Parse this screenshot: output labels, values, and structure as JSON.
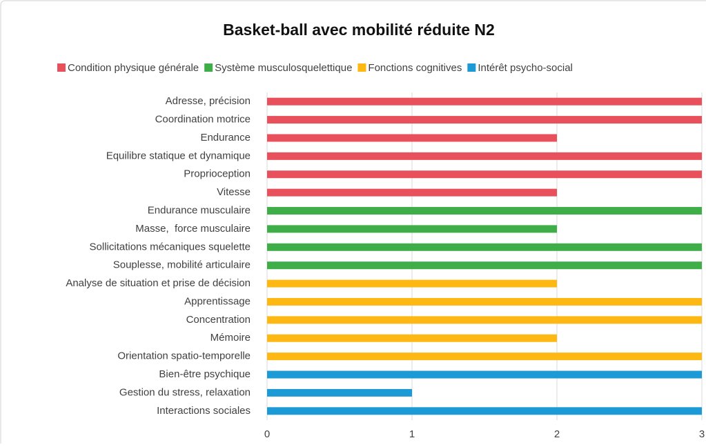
{
  "chart_data": {
    "type": "bar",
    "orientation": "horizontal",
    "title": "Basket-ball avec mobilité réduite N2",
    "categories": [
      "Adresse, précision",
      "Coordination motrice",
      "Endurance",
      "Equilibre statique et dynamique",
      "Proprioception",
      "Vitesse",
      "Endurance musculaire",
      "Masse,  force musculaire",
      "Sollicitations mécaniques squelette",
      "Souplesse, mobilité articulaire",
      "Analyse de situation et prise de décision",
      "Apprentissage",
      "Concentration",
      "Mémoire",
      "Orientation spatio-temporelle",
      "Bien-être psychique",
      "Gestion du stress, relaxation",
      "Interactions sociales"
    ],
    "series": [
      {
        "name": "Condition physique générale",
        "color": "#e8505b",
        "values": [
          3,
          3,
          2,
          3,
          3,
          2,
          null,
          null,
          null,
          null,
          null,
          null,
          null,
          null,
          null,
          null,
          null,
          null
        ]
      },
      {
        "name": "Système musculosquelettique",
        "color": "#3fae49",
        "values": [
          null,
          null,
          null,
          null,
          null,
          null,
          3,
          2,
          3,
          3,
          null,
          null,
          null,
          null,
          null,
          null,
          null,
          null
        ]
      },
      {
        "name": "Fonctions cognitives",
        "color": "#fdb813",
        "values": [
          null,
          null,
          null,
          null,
          null,
          null,
          null,
          null,
          null,
          null,
          2,
          3,
          3,
          2,
          3,
          null,
          null,
          null
        ]
      },
      {
        "name": "Intérêt psycho-social",
        "color": "#1b9ad6",
        "values": [
          null,
          null,
          null,
          null,
          null,
          null,
          null,
          null,
          null,
          null,
          null,
          null,
          null,
          null,
          null,
          3,
          1,
          3
        ]
      }
    ],
    "xlim": [
      0,
      3
    ],
    "xticks": [
      0,
      1,
      2,
      3
    ],
    "grid": true,
    "legend": "top"
  }
}
